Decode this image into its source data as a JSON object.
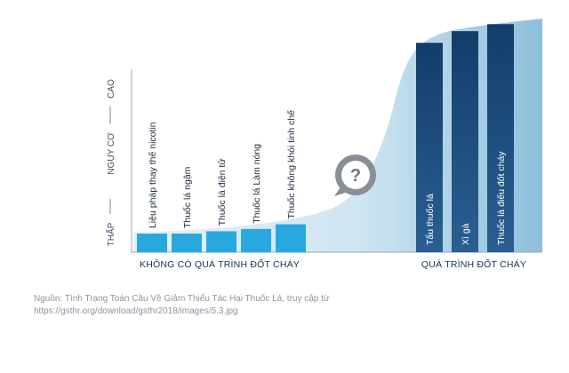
{
  "chart_data": {
    "type": "bar",
    "title": "",
    "ylabel": "NGUY CƠ",
    "y_axis_labels": {
      "low": "THẤP",
      "middle": "NGUY CƠ",
      "high": "CAO"
    },
    "ylim": [
      0,
      100
    ],
    "groups": [
      {
        "name": "KHÔNG CÓ QUÁ TRÌNH ĐỐT CHÁY",
        "categories": [
          "Liệu pháp thay thế nicotin",
          "Thuốc lá ngậm",
          "Thuốc lá điện tử",
          "Thuốc lá Làm nóng",
          "Thuốc không khói tinh chế"
        ],
        "values": [
          8,
          8,
          9,
          10,
          12
        ],
        "color": "#29a8e0"
      },
      {
        "name": "QUÁ TRÌNH ĐỐT CHÁY",
        "categories": [
          "Tẩu thuốc lá",
          "Xì gà",
          "Thuốc lá điếu đốt cháy"
        ],
        "values": [
          90,
          95,
          98
        ],
        "color": "#1a4a7a"
      }
    ],
    "annotation_icon": "question-speech-bubble-icon"
  },
  "source": {
    "line1": "Nguồn: Tình Trạng Toàn Cầu Về Giảm Thiểu Tác Hại Thuốc Lá, truy cập từ",
    "line2": "https://gsthr.org/download/gsthr2018/images/5.3.jpg"
  }
}
